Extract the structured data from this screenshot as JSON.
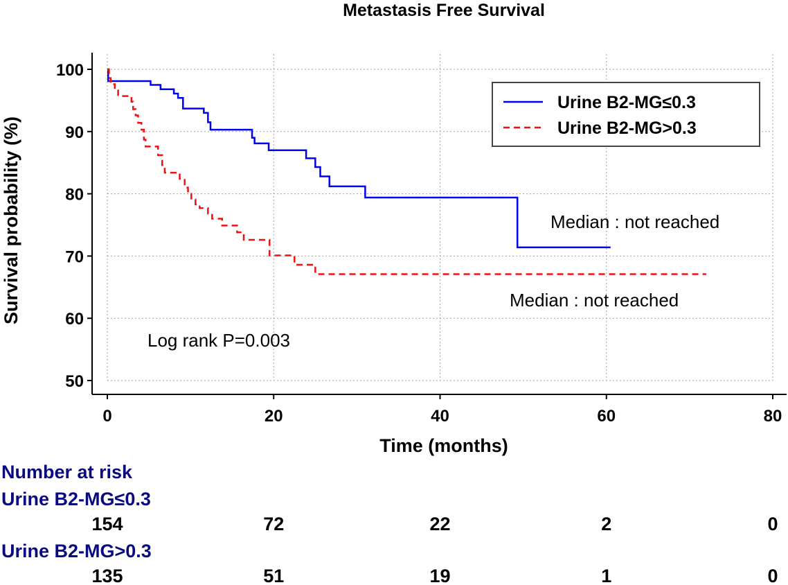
{
  "chart_data": {
    "type": "line",
    "subtype": "kaplan-meier",
    "title": "Metastasis Free Survival",
    "xlabel": "Time (months)",
    "ylabel": "Survival probability (%)",
    "xlim": [
      0,
      80
    ],
    "ylim": [
      50,
      100
    ],
    "xticks": [
      0,
      20,
      40,
      60,
      80
    ],
    "yticks": [
      50,
      60,
      70,
      80,
      90,
      100
    ],
    "grid": true,
    "legend_position": "top-right",
    "colors": {
      "series1": "#0000ee",
      "series2": "#ee1111"
    },
    "series": [
      {
        "name": "Urine B2-MG≤0.3",
        "style": "solid",
        "steps": [
          [
            0,
            100
          ],
          [
            0.1,
            98.1
          ],
          [
            5.2,
            97.5
          ],
          [
            6.4,
            96.8
          ],
          [
            8.0,
            96.1
          ],
          [
            8.5,
            95.4
          ],
          [
            9.1,
            93.7
          ],
          [
            11.6,
            93.0
          ],
          [
            12.1,
            91.5
          ],
          [
            12.4,
            90.3
          ],
          [
            17.4,
            89.0
          ],
          [
            17.7,
            88.1
          ],
          [
            19.4,
            87.0
          ],
          [
            23.9,
            85.7
          ],
          [
            25.0,
            84.3
          ],
          [
            25.6,
            82.8
          ],
          [
            26.7,
            81.2
          ],
          [
            31.0,
            79.4
          ],
          [
            49.3,
            71.4
          ],
          [
            60.5,
            71.4
          ]
        ]
      },
      {
        "name": "Urine B2-MG>0.3",
        "style": "dashed",
        "steps": [
          [
            0,
            100
          ],
          [
            0.2,
            98.6
          ],
          [
            0.4,
            97.6
          ],
          [
            0.9,
            96.8
          ],
          [
            1.3,
            95.7
          ],
          [
            2.9,
            94.8
          ],
          [
            3.1,
            93.6
          ],
          [
            3.4,
            92.6
          ],
          [
            3.7,
            91.4
          ],
          [
            4.1,
            90.3
          ],
          [
            4.4,
            88.7
          ],
          [
            4.6,
            87.6
          ],
          [
            6.1,
            86.2
          ],
          [
            6.6,
            84.6
          ],
          [
            6.9,
            83.4
          ],
          [
            8.7,
            82.4
          ],
          [
            9.3,
            81.0
          ],
          [
            9.7,
            80.0
          ],
          [
            10.1,
            79.1
          ],
          [
            10.6,
            78.3
          ],
          [
            11.1,
            77.7
          ],
          [
            12.1,
            76.8
          ],
          [
            12.6,
            76.0
          ],
          [
            13.8,
            74.9
          ],
          [
            15.6,
            73.8
          ],
          [
            16.4,
            72.6
          ],
          [
            19.5,
            70.1
          ],
          [
            22.5,
            68.6
          ],
          [
            25.0,
            67.1
          ],
          [
            72.0,
            67.1
          ]
        ]
      }
    ],
    "annotations": [
      {
        "text": "Median : not reached",
        "series": "Urine B2-MG≤0.3"
      },
      {
        "text": "Median : not reached",
        "series": "Urine B2-MG>0.3"
      },
      {
        "text": "Log rank P=0.003"
      }
    ],
    "risk_table": {
      "title": "Number at risk",
      "times": [
        0,
        20,
        40,
        60,
        80
      ],
      "rows": [
        {
          "label": "Urine B2-MG≤0.3",
          "values": [
            154,
            72,
            22,
            2,
            0
          ]
        },
        {
          "label": "Urine B2-MG>0.3",
          "values": [
            135,
            51,
            19,
            1,
            0
          ]
        }
      ]
    }
  }
}
